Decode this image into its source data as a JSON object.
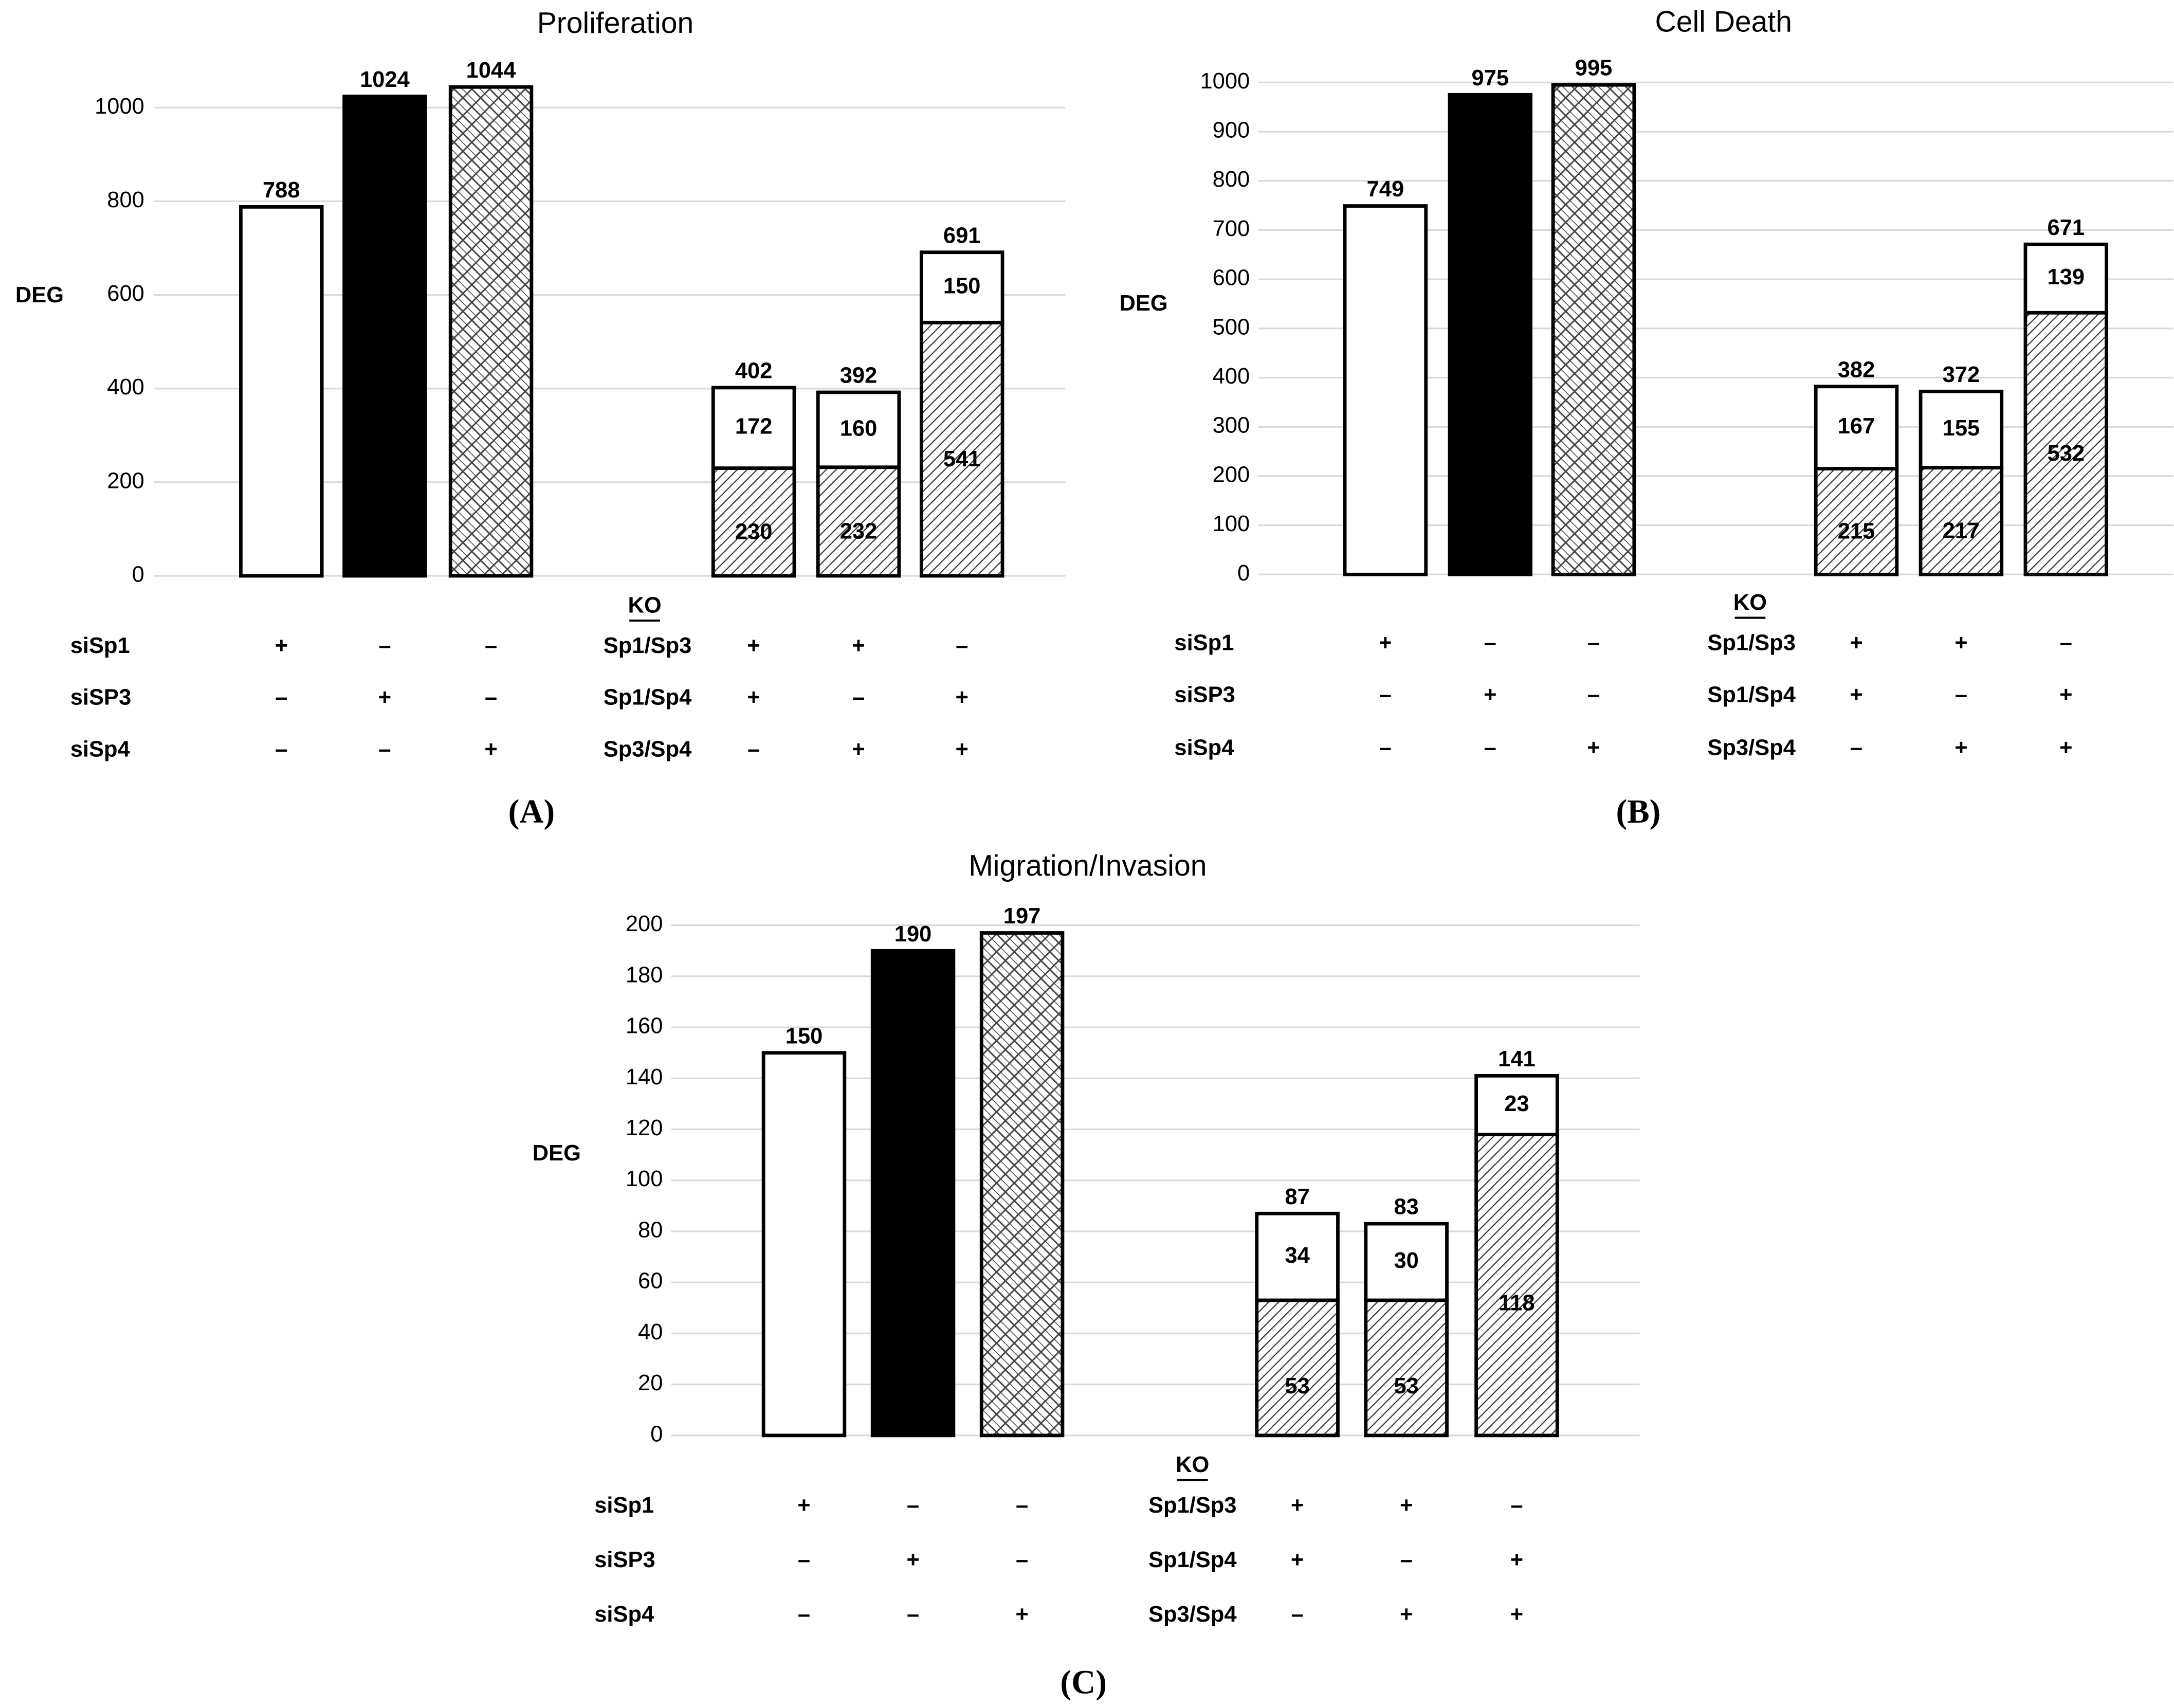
{
  "charts": [
    {
      "type": "bar",
      "title": "Proliferation",
      "y_label": "DEG",
      "panel": "(A)",
      "ylim": [
        0,
        1100
      ],
      "yticks": [
        0,
        200,
        400,
        600,
        800,
        1000
      ],
      "single": {
        "values": [
          788,
          1024,
          1044
        ],
        "fills": [
          "white",
          "black",
          "crosshatch"
        ]
      },
      "stacked": {
        "bottom": [
          230,
          232,
          541
        ],
        "top": [
          172,
          160,
          150
        ],
        "totals": [
          402,
          392,
          691
        ],
        "bottom_fill": "hatch",
        "top_fill": "white"
      },
      "ko_header": "KO",
      "rows": [
        {
          "si": "siSp1",
          "si_marks": [
            "+",
            "–",
            "–"
          ],
          "ko": "Sp1/Sp3",
          "ko_marks": [
            "+",
            "+",
            "–"
          ]
        },
        {
          "si": "siSP3",
          "si_marks": [
            "–",
            "+",
            "–"
          ],
          "ko": "Sp1/Sp4",
          "ko_marks": [
            "+",
            "–",
            "+"
          ]
        },
        {
          "si": "siSp4",
          "si_marks": [
            "–",
            "–",
            "+"
          ],
          "ko": "Sp3/Sp4",
          "ko_marks": [
            "–",
            "+",
            "+"
          ]
        }
      ]
    },
    {
      "type": "bar",
      "title": "Cell Death",
      "y_label": "DEG",
      "panel": "(B)",
      "ylim": [
        0,
        1000
      ],
      "yticks": [
        0,
        100,
        200,
        300,
        400,
        500,
        600,
        700,
        800,
        900,
        1000
      ],
      "single": {
        "values": [
          749,
          975,
          995
        ],
        "fills": [
          "white",
          "black",
          "crosshatch"
        ]
      },
      "stacked": {
        "bottom": [
          215,
          217,
          532
        ],
        "top": [
          167,
          155,
          139
        ],
        "totals": [
          382,
          372,
          671
        ],
        "bottom_fill": "hatch",
        "top_fill": "white"
      },
      "ko_header": "KO",
      "rows": [
        {
          "si": "siSp1",
          "si_marks": [
            "+",
            "–",
            "–"
          ],
          "ko": "Sp1/Sp3",
          "ko_marks": [
            "+",
            "+",
            "–"
          ]
        },
        {
          "si": "siSP3",
          "si_marks": [
            "–",
            "+",
            "–"
          ],
          "ko": "Sp1/Sp4",
          "ko_marks": [
            "+",
            "–",
            "+"
          ]
        },
        {
          "si": "siSp4",
          "si_marks": [
            "–",
            "–",
            "+"
          ],
          "ko": "Sp3/Sp4",
          "ko_marks": [
            "–",
            "+",
            "+"
          ]
        }
      ]
    },
    {
      "type": "bar",
      "title": "Migration/Invasion",
      "y_label": "DEG",
      "panel": "(C)",
      "ylim": [
        0,
        200
      ],
      "yticks": [
        0,
        20,
        40,
        60,
        80,
        100,
        120,
        140,
        160,
        180,
        200
      ],
      "single": {
        "values": [
          150,
          190,
          197
        ],
        "fills": [
          "white",
          "black",
          "crosshatch"
        ]
      },
      "stacked": {
        "bottom": [
          53,
          53,
          118
        ],
        "top": [
          34,
          30,
          23
        ],
        "totals": [
          87,
          83,
          141
        ],
        "bottom_fill": "hatch",
        "top_fill": "white"
      },
      "ko_header": "KO",
      "rows": [
        {
          "si": "siSp1",
          "si_marks": [
            "+",
            "–",
            "–"
          ],
          "ko": "Sp1/Sp3",
          "ko_marks": [
            "+",
            "+",
            "–"
          ]
        },
        {
          "si": "siSP3",
          "si_marks": [
            "–",
            "+",
            "–"
          ],
          "ko": "Sp1/Sp4",
          "ko_marks": [
            "+",
            "–",
            "+"
          ]
        },
        {
          "si": "siSp4",
          "si_marks": [
            "–",
            "–",
            "+"
          ],
          "ko": "Sp3/Sp4",
          "ko_marks": [
            "–",
            "+",
            "+"
          ]
        }
      ]
    }
  ]
}
